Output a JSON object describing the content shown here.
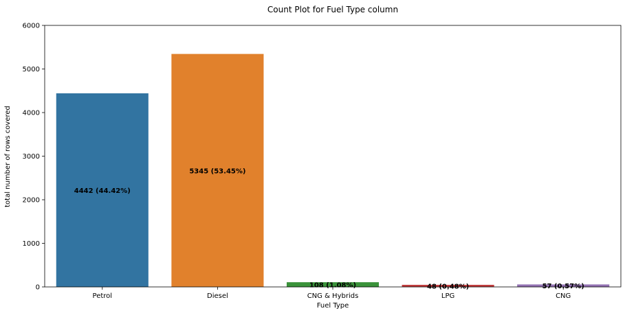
{
  "chart_data": {
    "type": "bar",
    "title": "Count Plot for Fuel Type column",
    "xlabel": "Fuel Type",
    "ylabel": "total number of rows covered",
    "categories": [
      "Petrol",
      "Diesel",
      "CNG & Hybrids",
      "LPG",
      "CNG"
    ],
    "values": [
      4442,
      5345,
      108,
      48,
      57
    ],
    "data_labels": [
      "4442 (44.42%)",
      "5345 (53.45%)",
      "108 (1.08%)",
      "48 (0.48%)",
      "57 (0.57%)"
    ],
    "colors": [
      "#3274a1",
      "#e1812c",
      "#3a923a",
      "#c03d3e",
      "#9372b2"
    ],
    "ylim": [
      0,
      6000
    ],
    "yticks": [
      0,
      1000,
      2000,
      3000,
      4000,
      5000,
      6000
    ],
    "grid": false,
    "legend": "none"
  }
}
